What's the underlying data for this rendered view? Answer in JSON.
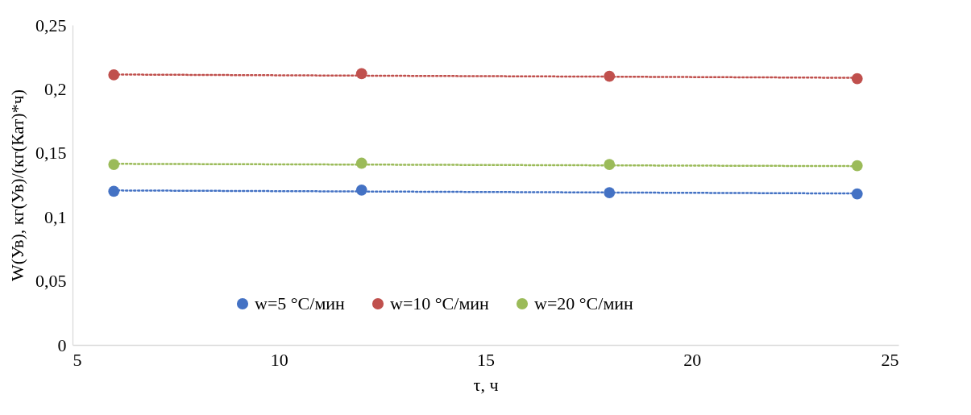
{
  "chart_data": {
    "type": "scatter",
    "xlabel": "τ, ч",
    "ylabel": "W(Ув), кг(Ув)/(кг(Кат)*ч)",
    "x": [
      6,
      12,
      18,
      24
    ],
    "series": [
      {
        "name": "w=5 °С/мин",
        "color": "#4472c4",
        "values": [
          0.12,
          0.121,
          0.119,
          0.118
        ]
      },
      {
        "name": "w=10 °С/мин",
        "color": "#c0504d",
        "values": [
          0.211,
          0.212,
          0.21,
          0.208
        ]
      },
      {
        "name": "w=20 °С/мин",
        "color": "#9bbb59",
        "values": [
          0.141,
          0.142,
          0.141,
          0.14
        ]
      },
      {
        "type": "line",
        "color": "#4472c4",
        "values": [
          0.1207,
          0.1199,
          0.1191,
          0.1183
        ],
        "line_style": "dotted",
        "marker": "none"
      },
      {
        "type": "line",
        "color": "#c0504d",
        "values": [
          0.2113,
          0.2104,
          0.2096,
          0.2087
        ],
        "line_style": "dotted",
        "marker": "none"
      },
      {
        "type": "line",
        "color": "#9bbb59",
        "values": [
          0.1415,
          0.1409,
          0.1403,
          0.1397
        ],
        "line_style": "dotted",
        "marker": "none"
      }
    ],
    "xlim": [
      5,
      25
    ],
    "xticks": [
      5,
      10,
      15,
      20,
      25
    ],
    "ylim": [
      0,
      0.25
    ],
    "yticks": [
      0,
      {
        "value": 0.05,
        "label": "0,05"
      },
      {
        "value": 0.1,
        "label": "0,1"
      },
      {
        "value": 0.15,
        "label": "0,15"
      },
      {
        "value": 0.2,
        "label": "0,2"
      },
      {
        "value": 0.25,
        "label": "0,25"
      }
    ],
    "grid": false,
    "legend": "bottom",
    "marker": "circle"
  }
}
